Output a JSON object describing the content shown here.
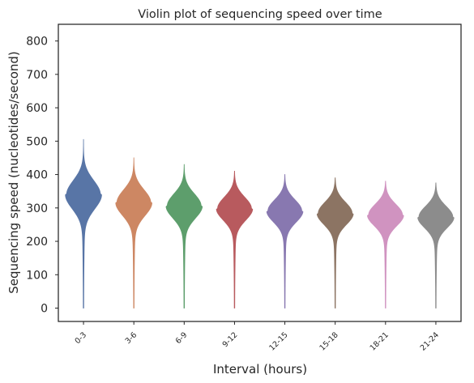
{
  "chart_data": {
    "type": "violin",
    "title": "Violin plot of sequencing speed over time",
    "xlabel": "Interval (hours)",
    "ylabel": "Sequencing speed (nucleotides/second)",
    "ylim": [
      -40,
      850
    ],
    "yticks": [
      0,
      100,
      200,
      300,
      400,
      500,
      600,
      700,
      800
    ],
    "grid": false,
    "categories": [
      "0-3",
      "3-6",
      "6-9",
      "9-12",
      "12-15",
      "15-18",
      "18-21",
      "21-24"
    ],
    "series": [
      {
        "category": "0-3",
        "median": 340,
        "q_spread": 42,
        "max": 505,
        "min": 0,
        "color": "#5875a6"
      },
      {
        "category": "3-6",
        "median": 316,
        "q_spread": 38,
        "max": 450,
        "min": 0,
        "color": "#cd8763"
      },
      {
        "category": "6-9",
        "median": 306,
        "q_spread": 36,
        "max": 430,
        "min": 0,
        "color": "#5d9e6c"
      },
      {
        "category": "9-12",
        "median": 298,
        "q_spread": 34,
        "max": 410,
        "min": 0,
        "color": "#b85a5e"
      },
      {
        "category": "12-15",
        "median": 291,
        "q_spread": 33,
        "max": 400,
        "min": 0,
        "color": "#8878b0"
      },
      {
        "category": "15-18",
        "median": 284,
        "q_spread": 33,
        "max": 390,
        "min": 0,
        "color": "#8c7463"
      },
      {
        "category": "18-21",
        "median": 279,
        "q_spread": 32,
        "max": 380,
        "min": 0,
        "color": "#d093c0"
      },
      {
        "category": "21-24",
        "median": 273,
        "q_spread": 32,
        "max": 375,
        "min": 0,
        "color": "#8c8c8c"
      }
    ]
  }
}
